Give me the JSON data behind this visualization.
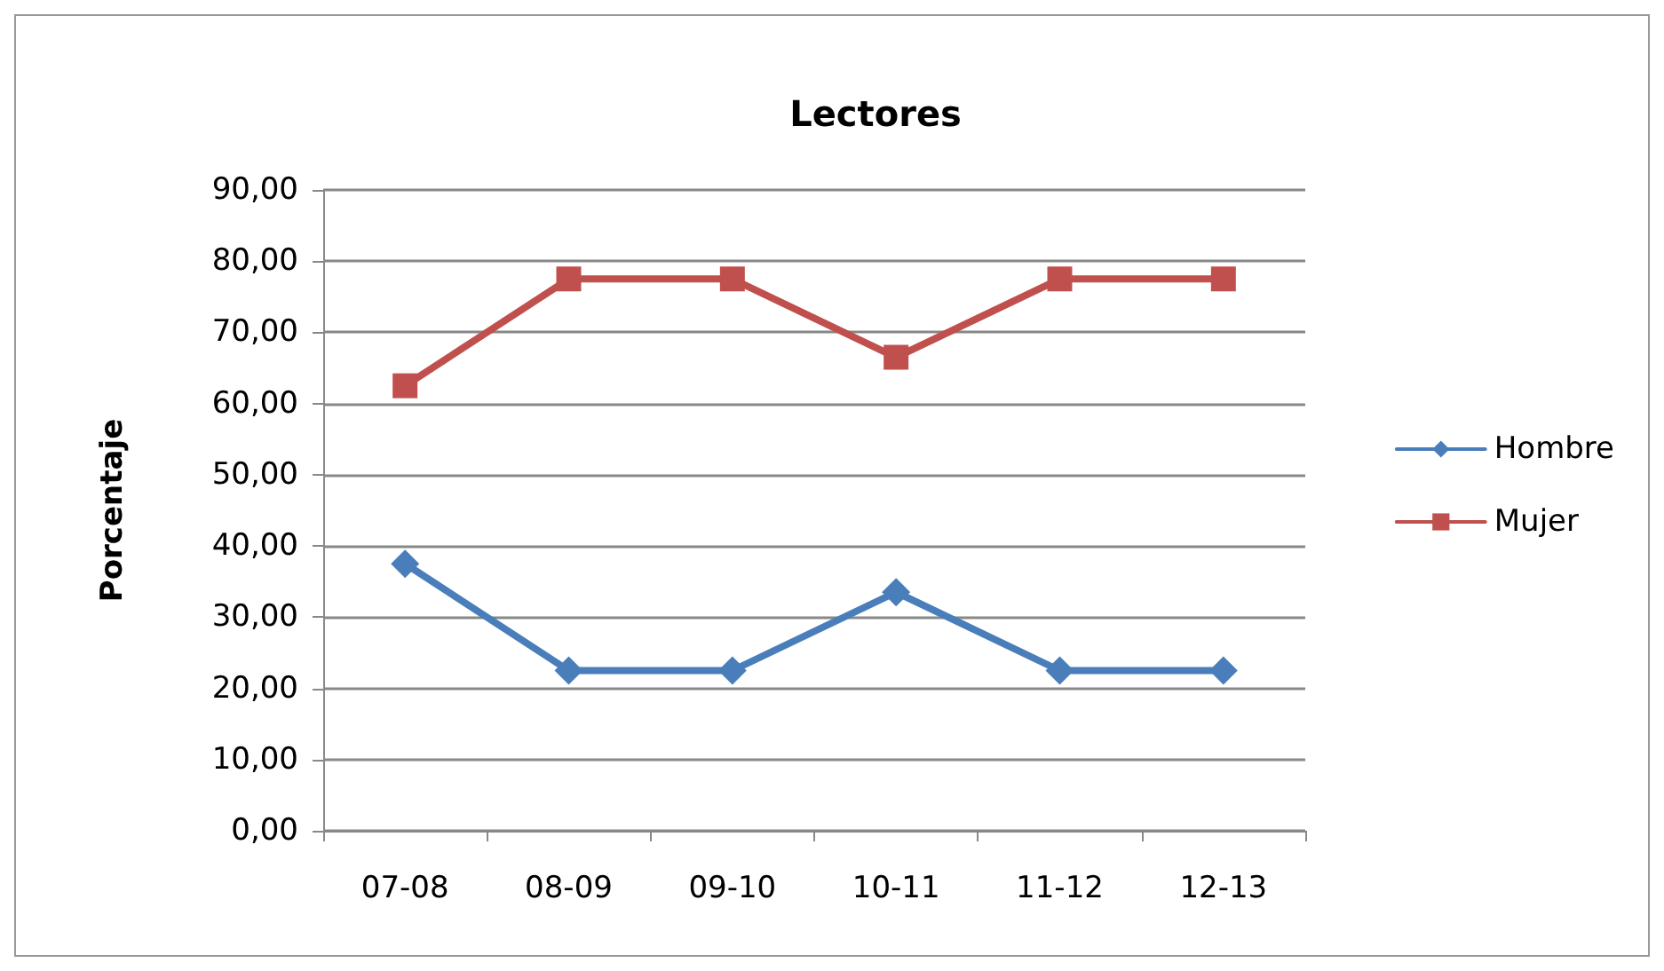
{
  "chart_data": {
    "type": "line",
    "title": "Lectores",
    "ylabel": "Porcentaje",
    "categories": [
      "07-08",
      "08-09",
      "09-10",
      "10-11",
      "11-12",
      "12-13"
    ],
    "series": [
      {
        "name": "Hombre",
        "color": "#4a7ebb",
        "marker": "diamond",
        "values": [
          37.5,
          22.5,
          22.5,
          33.5,
          22.5,
          22.5
        ]
      },
      {
        "name": "Mujer",
        "color": "#c0504d",
        "marker": "square",
        "values": [
          62.5,
          77.5,
          77.5,
          66.5,
          77.5,
          77.5
        ]
      }
    ],
    "ylim": [
      0,
      90
    ],
    "yticks": [
      {
        "value": 0,
        "label": "0,00"
      },
      {
        "value": 10,
        "label": "10,00"
      },
      {
        "value": 20,
        "label": "20,00"
      },
      {
        "value": 30,
        "label": "30,00"
      },
      {
        "value": 40,
        "label": "40,00"
      },
      {
        "value": 50,
        "label": "50,00"
      },
      {
        "value": 60,
        "label": "60,00"
      },
      {
        "value": 70,
        "label": "70,00"
      },
      {
        "value": 80,
        "label": "80,00"
      },
      {
        "value": 90,
        "label": "90,00"
      }
    ],
    "grid": "y",
    "legend": "right",
    "line_style": "solid"
  }
}
